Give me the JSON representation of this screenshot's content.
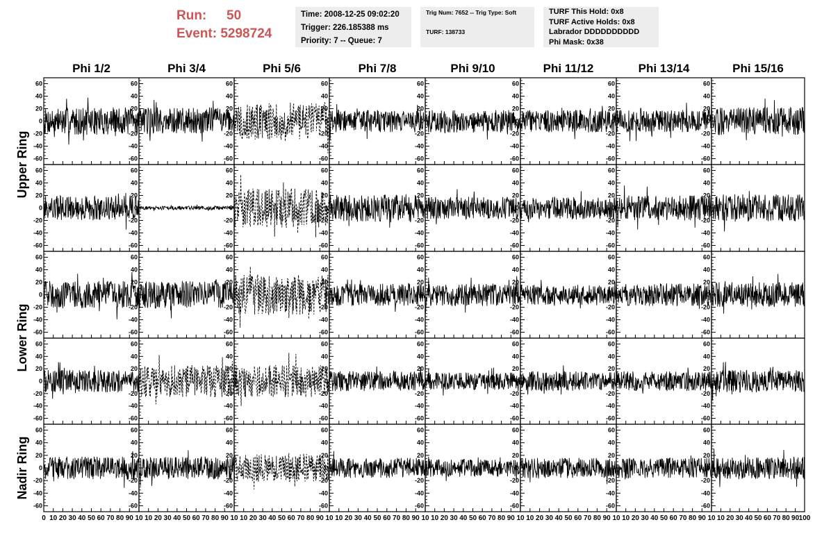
{
  "header": {
    "run_label": "Run:",
    "run_value": "50",
    "event_label": "Event:",
    "event_value": "5298724",
    "time_box": {
      "line1": "Time: 2008-12-25 09:02:20",
      "line2": "Trigger: 226.185388 ms",
      "line3": "Priority: 7 -- Queue: 7"
    },
    "trig_box": {
      "line1": "Trig Num: 7652 -- Trig Type: Soft",
      "line2": "TURF: 138733"
    },
    "turf_box": {
      "line1": "TURF This Hold: 0x8",
      "line2": "TURF Active Holds: 0x8",
      "line3": "Labrador DDDDDDDDDD",
      "line4": "Phi Mask: 0x38"
    }
  },
  "columns": [
    "Phi 1/2",
    "Phi 3/4",
    "Phi 5/6",
    "Phi 7/8",
    "Phi 9/10",
    "Phi 11/12",
    "Phi 13/14",
    "Phi 15/16"
  ],
  "rings": [
    {
      "label": "Upper Ring",
      "rows": 2
    },
    {
      "label": "Lower Ring",
      "rows": 2
    },
    {
      "label": "Nadir Ring",
      "rows": 1
    }
  ],
  "chart_data": {
    "type": "line",
    "title": "",
    "xlabel": "",
    "ylabel": "",
    "xlim": [
      0,
      100
    ],
    "ylim": [
      -65,
      65
    ],
    "y_ticks": [
      -60,
      -40,
      -20,
      0,
      20,
      40,
      60
    ],
    "x_ticks": [
      0,
      10,
      20,
      30,
      40,
      50,
      60,
      70,
      80,
      90,
      100
    ],
    "x_tick_labels_first": [
      "0",
      "10",
      "20",
      "30",
      "40",
      "50",
      "60",
      "70",
      "80",
      "90",
      "10"
    ],
    "x_tick_labels_middle": [
      "10",
      "20",
      "30",
      "40",
      "50",
      "60",
      "70",
      "80",
      "90",
      "10"
    ],
    "x_tick_labels_last": [
      "10",
      "20",
      "30",
      "40",
      "50",
      "60",
      "70",
      "80",
      "90",
      "100"
    ],
    "series_style": "solid black waveform; dashed where channel flagged",
    "panels": [
      {
        "row": 0,
        "col": 0,
        "amplitude": 22,
        "dashed": false
      },
      {
        "row": 0,
        "col": 1,
        "amplitude": 22,
        "dashed": false
      },
      {
        "row": 0,
        "col": 2,
        "amplitude": 30,
        "dashed": true
      },
      {
        "row": 0,
        "col": 3,
        "amplitude": 18,
        "dashed": false
      },
      {
        "row": 0,
        "col": 4,
        "amplitude": 18,
        "dashed": false
      },
      {
        "row": 0,
        "col": 5,
        "amplitude": 18,
        "dashed": false
      },
      {
        "row": 0,
        "col": 6,
        "amplitude": 18,
        "dashed": false
      },
      {
        "row": 0,
        "col": 7,
        "amplitude": 22,
        "dashed": false
      },
      {
        "row": 1,
        "col": 0,
        "amplitude": 20,
        "dashed": false
      },
      {
        "row": 1,
        "col": 1,
        "amplitude": 3,
        "dashed": false
      },
      {
        "row": 1,
        "col": 2,
        "amplitude": 32,
        "dashed": true
      },
      {
        "row": 1,
        "col": 3,
        "amplitude": 22,
        "dashed": false
      },
      {
        "row": 1,
        "col": 4,
        "amplitude": 18,
        "dashed": false
      },
      {
        "row": 1,
        "col": 5,
        "amplitude": 18,
        "dashed": false
      },
      {
        "row": 1,
        "col": 6,
        "amplitude": 20,
        "dashed": false
      },
      {
        "row": 1,
        "col": 7,
        "amplitude": 22,
        "dashed": false
      },
      {
        "row": 2,
        "col": 0,
        "amplitude": 22,
        "dashed": false
      },
      {
        "row": 2,
        "col": 1,
        "amplitude": 22,
        "dashed": false
      },
      {
        "row": 2,
        "col": 2,
        "amplitude": 32,
        "dashed": true
      },
      {
        "row": 2,
        "col": 3,
        "amplitude": 18,
        "dashed": false
      },
      {
        "row": 2,
        "col": 4,
        "amplitude": 18,
        "dashed": false
      },
      {
        "row": 2,
        "col": 5,
        "amplitude": 16,
        "dashed": false
      },
      {
        "row": 2,
        "col": 6,
        "amplitude": 18,
        "dashed": false
      },
      {
        "row": 2,
        "col": 7,
        "amplitude": 20,
        "dashed": false
      },
      {
        "row": 3,
        "col": 0,
        "amplitude": 18,
        "dashed": false
      },
      {
        "row": 3,
        "col": 1,
        "amplitude": 26,
        "dashed": true
      },
      {
        "row": 3,
        "col": 2,
        "amplitude": 26,
        "dashed": true
      },
      {
        "row": 3,
        "col": 3,
        "amplitude": 16,
        "dashed": false
      },
      {
        "row": 3,
        "col": 4,
        "amplitude": 14,
        "dashed": false
      },
      {
        "row": 3,
        "col": 5,
        "amplitude": 16,
        "dashed": false
      },
      {
        "row": 3,
        "col": 6,
        "amplitude": 16,
        "dashed": false
      },
      {
        "row": 3,
        "col": 7,
        "amplitude": 18,
        "dashed": false
      },
      {
        "row": 4,
        "col": 0,
        "amplitude": 18,
        "dashed": false
      },
      {
        "row": 4,
        "col": 1,
        "amplitude": 18,
        "dashed": false
      },
      {
        "row": 4,
        "col": 2,
        "amplitude": 22,
        "dashed": true
      },
      {
        "row": 4,
        "col": 3,
        "amplitude": 16,
        "dashed": false
      },
      {
        "row": 4,
        "col": 4,
        "amplitude": 14,
        "dashed": false
      },
      {
        "row": 4,
        "col": 5,
        "amplitude": 16,
        "dashed": false
      },
      {
        "row": 4,
        "col": 6,
        "amplitude": 16,
        "dashed": false
      },
      {
        "row": 4,
        "col": 7,
        "amplitude": 18,
        "dashed": false
      }
    ]
  }
}
